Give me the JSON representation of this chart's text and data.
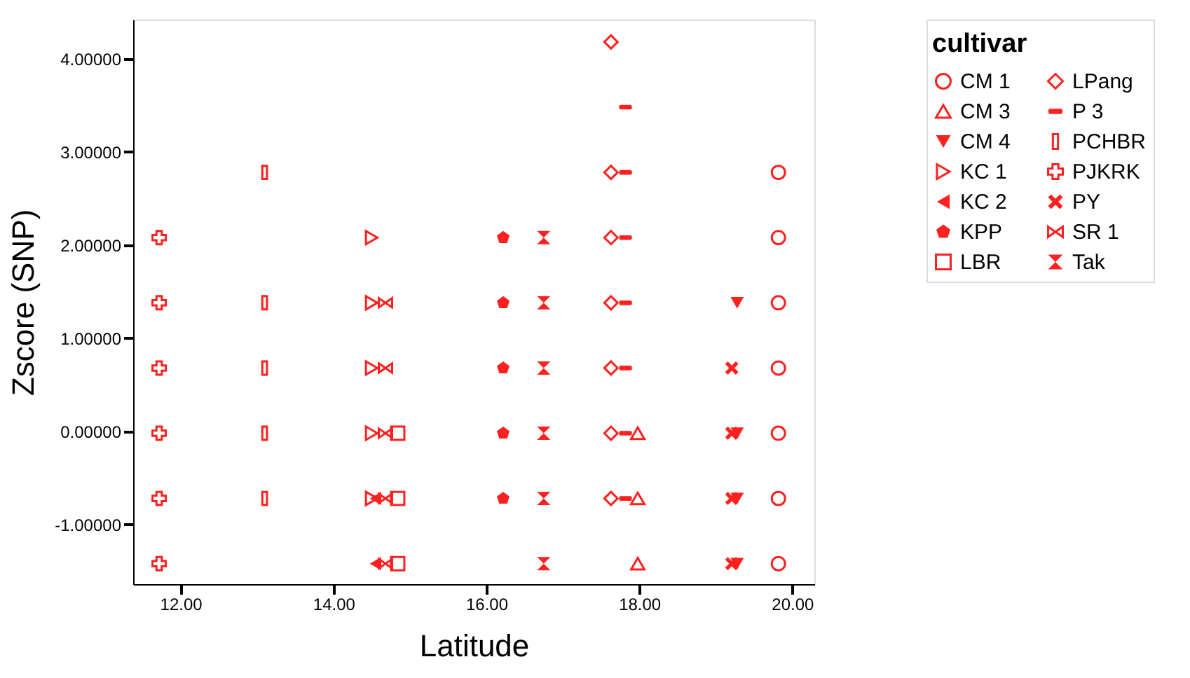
{
  "chart_data": {
    "type": "scatter",
    "xlabel": "Latitude",
    "ylabel": "Zscore (SNP)",
    "legend_title": "cultivar",
    "legend": "top right",
    "grid": false,
    "xlim": [
      11.38,
      20.29
    ],
    "ylim": [
      -1.64,
      4.42
    ],
    "xticks": [
      {
        "value": 12,
        "label": "12.00"
      },
      {
        "value": 14,
        "label": "14.00"
      },
      {
        "value": 16,
        "label": "16.00"
      },
      {
        "value": 18,
        "label": "18.00"
      },
      {
        "value": 20,
        "label": "20.00"
      }
    ],
    "yticks": [
      {
        "value": -1,
        "label": "-1.00000"
      },
      {
        "value": 0,
        "label": "0.00000"
      },
      {
        "value": 1,
        "label": "1.00000"
      },
      {
        "value": 2,
        "label": "2.00000"
      },
      {
        "value": 3,
        "label": "3.00000"
      },
      {
        "value": 4,
        "label": "4.00000"
      }
    ],
    "series": [
      {
        "name": "CM 1",
        "color": "#ff2020",
        "x": [
          19.82,
          19.82,
          19.82,
          19.82,
          19.82,
          19.82,
          19.82
        ],
        "values": [
          2.78,
          2.08,
          1.38,
          0.68,
          -0.02,
          -0.72,
          -1.42
        ]
      },
      {
        "name": "CM 3",
        "color": "#ff2020",
        "x": [
          17.98,
          17.98,
          17.98
        ],
        "values": [
          -0.02,
          -0.72,
          -1.42
        ]
      },
      {
        "name": "CM 4",
        "color": "#ff2020",
        "x": [
          19.28,
          19.28,
          19.28,
          19.28
        ],
        "values": [
          1.38,
          -0.02,
          -0.72,
          -1.42
        ]
      },
      {
        "name": "KC 1",
        "color": "#ff2020",
        "x": [
          14.5,
          14.5,
          14.5,
          14.5,
          14.5
        ],
        "values": [
          2.08,
          1.38,
          0.68,
          -0.02,
          -0.72
        ]
      },
      {
        "name": "KC 2",
        "color": "#ff2020",
        "x": [
          14.55,
          14.55
        ],
        "values": [
          -0.72,
          -1.42
        ]
      },
      {
        "name": "KPP",
        "color": "#ff2020",
        "x": [
          16.22,
          16.22,
          16.22,
          16.22,
          16.22
        ],
        "values": [
          2.08,
          1.38,
          0.68,
          -0.02,
          -0.72
        ]
      },
      {
        "name": "LBR",
        "color": "#ff2020",
        "x": [
          14.84,
          14.84,
          14.84
        ],
        "values": [
          -0.02,
          -0.72,
          -1.42
        ]
      },
      {
        "name": "LPang",
        "color": "#ff2020",
        "x": [
          17.63,
          17.63,
          17.63,
          17.63,
          17.63,
          17.63,
          17.63
        ],
        "values": [
          4.18,
          2.78,
          2.08,
          1.38,
          0.68,
          -0.02,
          -0.72
        ]
      },
      {
        "name": "P 3",
        "color": "#ff2020",
        "x": [
          17.82,
          17.82,
          17.82,
          17.82,
          17.82,
          17.82,
          17.82
        ],
        "values": [
          3.48,
          2.78,
          2.08,
          1.38,
          0.68,
          -0.02,
          -0.72
        ]
      },
      {
        "name": "PCHBR",
        "color": "#ff2020",
        "x": [
          13.1,
          13.1,
          13.1,
          13.1,
          13.1
        ],
        "values": [
          2.78,
          1.38,
          0.68,
          -0.02,
          -0.72
        ]
      },
      {
        "name": "PJKRK",
        "color": "#ff2020",
        "x": [
          11.72,
          11.72,
          11.72,
          11.72,
          11.72,
          11.72
        ],
        "values": [
          2.08,
          1.38,
          0.68,
          -0.02,
          -0.72,
          -1.42
        ]
      },
      {
        "name": "PY",
        "color": "#ff2020",
        "x": [
          19.21,
          19.21,
          19.21,
          19.21
        ],
        "values": [
          0.68,
          -0.02,
          -0.72,
          -1.42
        ]
      },
      {
        "name": "SR 1",
        "color": "#ff2020",
        "x": [
          14.68,
          14.68,
          14.68,
          14.68,
          14.68
        ],
        "values": [
          1.38,
          0.68,
          -0.02,
          -0.72,
          -1.42
        ]
      },
      {
        "name": "Tak",
        "color": "#ff2020",
        "x": [
          16.75,
          16.75,
          16.75,
          16.75,
          16.75,
          16.75
        ],
        "values": [
          2.08,
          1.38,
          0.68,
          -0.02,
          -0.72,
          -1.42
        ]
      }
    ]
  }
}
